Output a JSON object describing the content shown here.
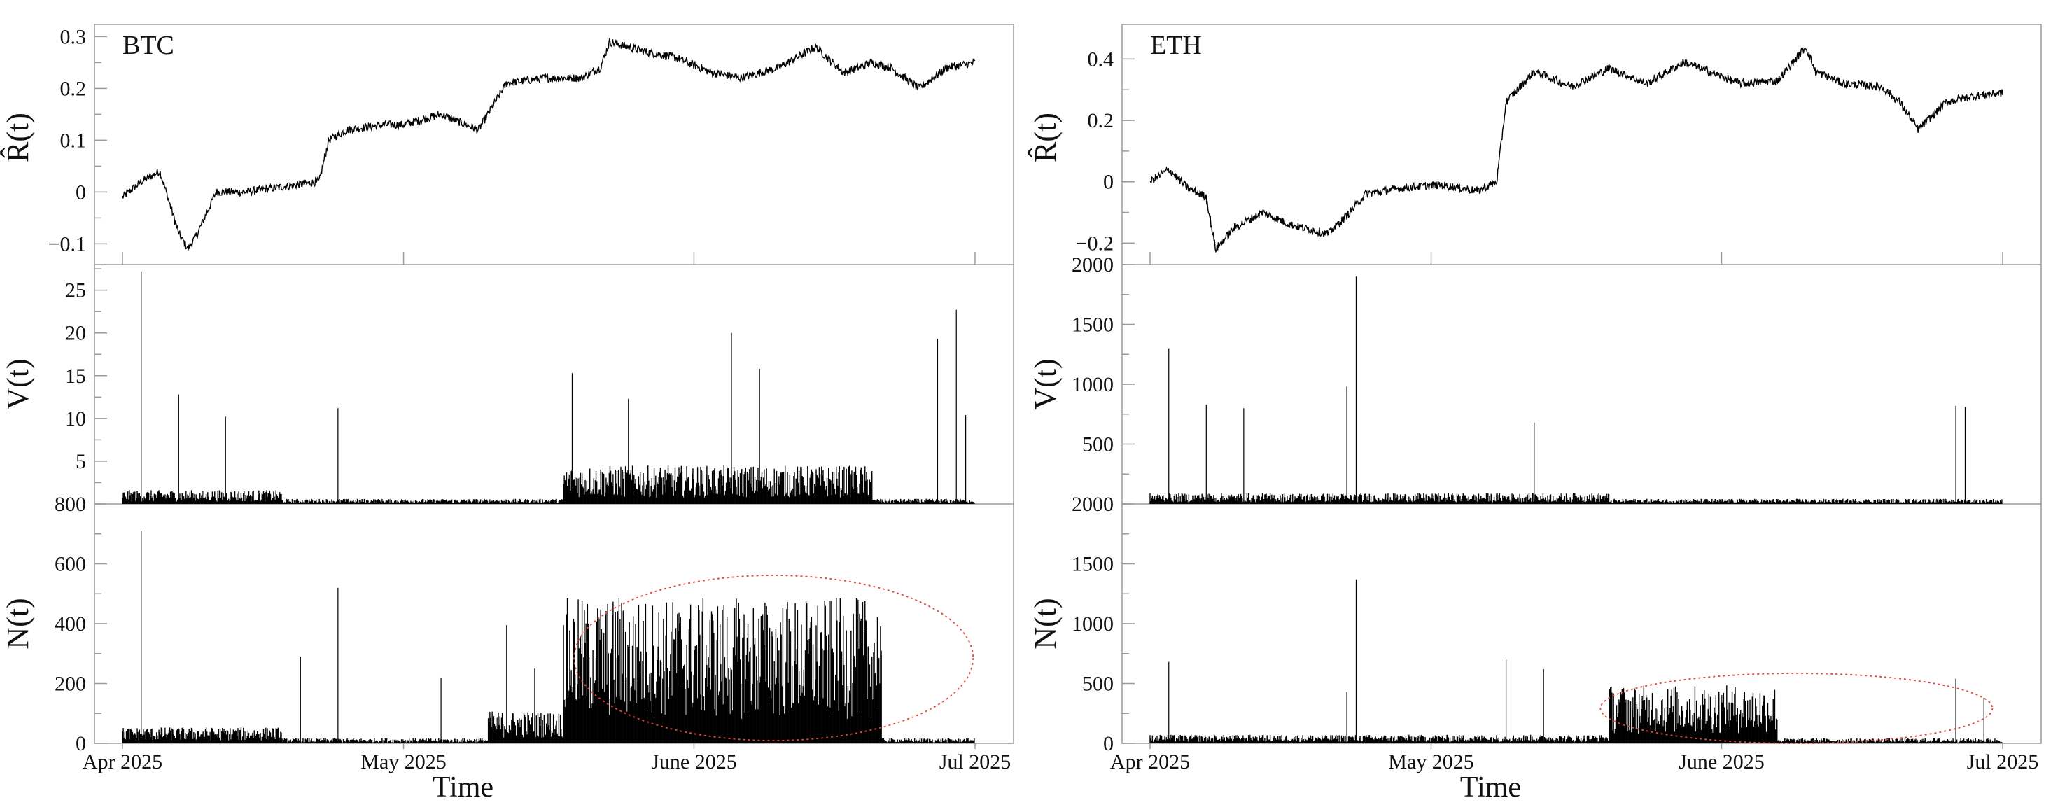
{
  "chart_data": [
    {
      "type": "line",
      "asset": "BTC",
      "panel": "R",
      "ylabel": "R̂(t)",
      "ylim": [
        -0.14,
        0.31
      ],
      "yticks": [
        -0.1,
        0,
        0.1,
        0.2,
        0.3
      ],
      "ytick_labels": [
        "−0.1",
        "0",
        "0.1",
        "0.2",
        "0.3"
      ],
      "xticks": [
        "2025-04-01",
        "2025-05-01",
        "2025-06-01",
        "2025-07-01"
      ],
      "series": [
        {
          "x": [
            "2025-04-01",
            "2025-04-03",
            "2025-04-05",
            "2025-04-07",
            "2025-04-08",
            "2025-04-09",
            "2025-04-11",
            "2025-04-14",
            "2025-04-18",
            "2025-04-22",
            "2025-04-23",
            "2025-04-25",
            "2025-04-29",
            "2025-05-01",
            "2025-05-05",
            "2025-05-09",
            "2025-05-12",
            "2025-05-16",
            "2025-05-20",
            "2025-05-22",
            "2025-05-23",
            "2025-05-27",
            "2025-05-30",
            "2025-06-03",
            "2025-06-06",
            "2025-06-10",
            "2025-06-14",
            "2025-06-17",
            "2025-06-20",
            "2025-06-22",
            "2025-06-25",
            "2025-06-28",
            "2025-07-01"
          ],
          "values": [
            -0.01,
            0.02,
            0.04,
            -0.08,
            -0.11,
            -0.08,
            0.0,
            0.0,
            0.01,
            0.02,
            0.1,
            0.12,
            0.13,
            0.13,
            0.15,
            0.12,
            0.21,
            0.22,
            0.22,
            0.24,
            0.29,
            0.27,
            0.26,
            0.23,
            0.22,
            0.24,
            0.28,
            0.23,
            0.25,
            0.24,
            0.2,
            0.24,
            0.25
          ]
        }
      ]
    },
    {
      "type": "bar",
      "asset": "BTC",
      "panel": "V",
      "ylabel": "V(t)",
      "ylim": [
        0,
        28
      ],
      "yticks": [
        5,
        10,
        15,
        20,
        25
      ],
      "ytick_labels": [
        "5",
        "10",
        "15",
        "20",
        "25"
      ],
      "spikes": [
        {
          "x": "2025-04-03",
          "value": 27.2
        },
        {
          "x": "2025-04-07",
          "value": 12.8
        },
        {
          "x": "2025-04-12",
          "value": 10.2
        },
        {
          "x": "2025-04-24",
          "value": 11.2
        },
        {
          "x": "2025-05-19",
          "value": 15.3
        },
        {
          "x": "2025-05-25",
          "value": 12.3
        },
        {
          "x": "2025-06-05",
          "value": 20.0
        },
        {
          "x": "2025-06-08",
          "value": 15.8
        },
        {
          "x": "2025-06-27",
          "value": 19.3
        },
        {
          "x": "2025-06-29",
          "value": 22.7
        },
        {
          "x": "2025-06-30",
          "value": 10.4
        }
      ],
      "baseline_segments": [
        {
          "from": "2025-04-01",
          "to": "2025-04-18",
          "level": 0.9
        },
        {
          "from": "2025-05-18",
          "to": "2025-06-20",
          "level": 2.5
        }
      ]
    },
    {
      "type": "bar",
      "asset": "BTC",
      "panel": "N",
      "ylabel": "N(t)",
      "ylim": [
        0,
        800
      ],
      "yticks": [
        0,
        200,
        400,
        600,
        800
      ],
      "ytick_labels": [
        "0",
        "200",
        "400",
        "600",
        "800"
      ],
      "spikes": [
        {
          "x": "2025-04-03",
          "value": 710
        },
        {
          "x": "2025-04-20",
          "value": 290
        },
        {
          "x": "2025-04-24",
          "value": 520
        },
        {
          "x": "2025-05-05",
          "value": 220
        },
        {
          "x": "2025-05-12",
          "value": 395
        },
        {
          "x": "2025-05-15",
          "value": 250
        },
        {
          "x": "2025-05-24",
          "value": 485
        },
        {
          "x": "2025-06-21",
          "value": 310
        }
      ],
      "baseline_segments": [
        {
          "from": "2025-04-01",
          "to": "2025-04-18",
          "level": 30
        },
        {
          "from": "2025-05-10",
          "to": "2025-05-18",
          "level": 60
        },
        {
          "from": "2025-05-18",
          "to": "2025-06-21",
          "level": 270
        }
      ],
      "highlight": "dashed red ellipse around Jun 2025"
    },
    {
      "type": "line",
      "asset": "ETH",
      "panel": "R",
      "ylabel": "R̂(t)",
      "ylim": [
        -0.27,
        0.49
      ],
      "yticks": [
        -0.2,
        0,
        0.2,
        0.4
      ],
      "ytick_labels": [
        "−0.2",
        "0",
        "0.2",
        "0.4"
      ],
      "xticks": [
        "2025-04-01",
        "2025-05-01",
        "2025-06-01",
        "2025-07-01"
      ],
      "series": [
        {
          "x": [
            "2025-04-01",
            "2025-04-03",
            "2025-04-05",
            "2025-04-07",
            "2025-04-08",
            "2025-04-10",
            "2025-04-13",
            "2025-04-16",
            "2025-04-20",
            "2025-04-22",
            "2025-04-24",
            "2025-04-28",
            "2025-05-02",
            "2025-05-06",
            "2025-05-08",
            "2025-05-09",
            "2025-05-12",
            "2025-05-16",
            "2025-05-20",
            "2025-05-24",
            "2025-05-28",
            "2025-06-03",
            "2025-06-07",
            "2025-06-10",
            "2025-06-11",
            "2025-06-14",
            "2025-06-18",
            "2025-06-20",
            "2025-06-22",
            "2025-06-25",
            "2025-06-28",
            "2025-07-01"
          ],
          "values": [
            0.0,
            0.04,
            -0.02,
            -0.05,
            -0.22,
            -0.15,
            -0.1,
            -0.14,
            -0.17,
            -0.11,
            -0.04,
            -0.02,
            -0.01,
            -0.03,
            0.0,
            0.26,
            0.36,
            0.31,
            0.37,
            0.32,
            0.39,
            0.32,
            0.33,
            0.44,
            0.36,
            0.32,
            0.31,
            0.26,
            0.17,
            0.26,
            0.28,
            0.29
          ]
        }
      ]
    },
    {
      "type": "bar",
      "asset": "ETH",
      "panel": "V",
      "ylabel": "V(t)",
      "ylim": [
        0,
        2000
      ],
      "yticks": [
        500,
        1000,
        1500,
        2000
      ],
      "ytick_labels": [
        "500",
        "1000",
        "1500",
        "2000"
      ],
      "spikes": [
        {
          "x": "2025-04-03",
          "value": 1300
        },
        {
          "x": "2025-04-07",
          "value": 830
        },
        {
          "x": "2025-04-11",
          "value": 800
        },
        {
          "x": "2025-04-22",
          "value": 980
        },
        {
          "x": "2025-04-23",
          "value": 1900
        },
        {
          "x": "2025-05-12",
          "value": 680
        },
        {
          "x": "2025-06-26",
          "value": 820
        },
        {
          "x": "2025-06-27",
          "value": 810
        }
      ],
      "baseline_segments": [
        {
          "from": "2025-04-01",
          "to": "2025-05-20",
          "level": 50
        }
      ]
    },
    {
      "type": "bar",
      "asset": "ETH",
      "panel": "N",
      "ylabel": "N(t)",
      "ylim": [
        0,
        2000
      ],
      "yticks": [
        0,
        500,
        1000,
        1500,
        2000
      ],
      "ytick_labels": [
        "0",
        "500",
        "1000",
        "1500",
        "2000"
      ],
      "spikes": [
        {
          "x": "2025-04-03",
          "value": 680
        },
        {
          "x": "2025-04-22",
          "value": 430
        },
        {
          "x": "2025-04-23",
          "value": 1370
        },
        {
          "x": "2025-05-09",
          "value": 700
        },
        {
          "x": "2025-05-13",
          "value": 620
        },
        {
          "x": "2025-06-26",
          "value": 540
        },
        {
          "x": "2025-06-29",
          "value": 380
        }
      ],
      "baseline_segments": [
        {
          "from": "2025-04-01",
          "to": "2025-05-20",
          "level": 40
        },
        {
          "from": "2025-05-20",
          "to": "2025-06-07",
          "level": 270
        }
      ],
      "highlight": "dashed red ellipse around Jun 2025"
    }
  ],
  "labels": {
    "btc": "BTC",
    "eth": "ETH",
    "xlabel": "Time",
    "xticks": [
      "Apr 2025",
      "May 2025",
      "June 2025",
      "Jul 2025"
    ]
  },
  "colors": {
    "line": "#000000",
    "frame": "#9a9a9a",
    "highlight": "#e0463b"
  }
}
